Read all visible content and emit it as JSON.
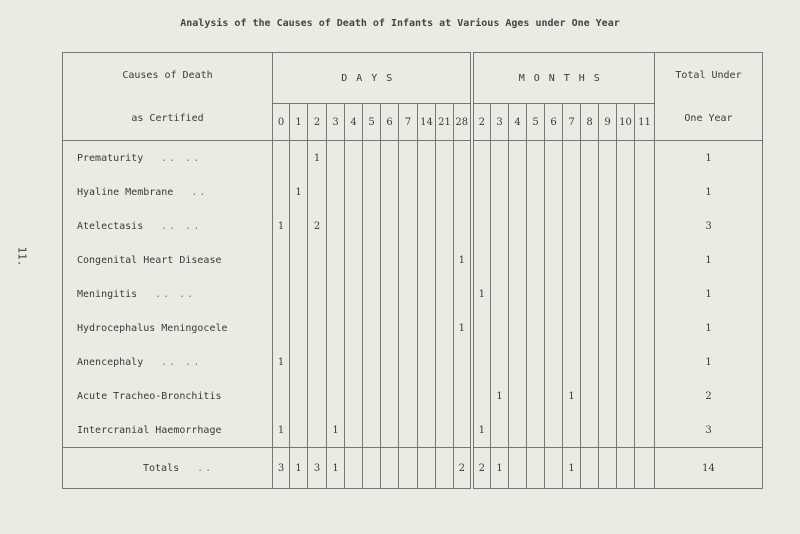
{
  "title": "Analysis of the Causes of Death of Infants at Various Ages under One Year",
  "page_number": "11.",
  "headers": {
    "cause_line1": "Causes of Death",
    "cause_line2": "as Certified",
    "days": "DAYS",
    "months": "MONTHS",
    "total_line1": "Total Under",
    "total_line2": "One Year"
  },
  "day_columns": [
    "0",
    "1",
    "2",
    "3",
    "4",
    "5",
    "6",
    "7",
    "14",
    "21",
    "28"
  ],
  "month_columns": [
    "2",
    "3",
    "4",
    "5",
    "6",
    "7",
    "8",
    "9",
    "10",
    "11"
  ],
  "rows": [
    {
      "cause": "Prematurity",
      "dots": ".. ..",
      "days": [
        "",
        "",
        "1",
        "",
        "",
        "",
        "",
        "",
        "",
        "",
        ""
      ],
      "months": [
        "",
        "",
        "",
        "",
        "",
        "",
        "",
        "",
        "",
        ""
      ],
      "total": "1"
    },
    {
      "cause": "Hyaline Membrane",
      "dots": "..",
      "days": [
        "",
        "1",
        "",
        "",
        "",
        "",
        "",
        "",
        "",
        "",
        ""
      ],
      "months": [
        "",
        "",
        "",
        "",
        "",
        "",
        "",
        "",
        "",
        ""
      ],
      "total": "1"
    },
    {
      "cause": "Atelectasis",
      "dots": ".. ..",
      "days": [
        "1",
        "",
        "2",
        "",
        "",
        "",
        "",
        "",
        "",
        "",
        ""
      ],
      "months": [
        "",
        "",
        "",
        "",
        "",
        "",
        "",
        "",
        "",
        ""
      ],
      "total": "3"
    },
    {
      "cause": "Congenital Heart Disease",
      "dots": "",
      "days": [
        "",
        "",
        "",
        "",
        "",
        "",
        "",
        "",
        "",
        "",
        "1"
      ],
      "months": [
        "",
        "",
        "",
        "",
        "",
        "",
        "",
        "",
        "",
        ""
      ],
      "total": "1"
    },
    {
      "cause": "Meningitis",
      "dots": ".. ..",
      "days": [
        "",
        "",
        "",
        "",
        "",
        "",
        "",
        "",
        "",
        "",
        ""
      ],
      "months": [
        "1",
        "",
        "",
        "",
        "",
        "",
        "",
        "",
        "",
        ""
      ],
      "total": "1"
    },
    {
      "cause": "Hydrocephalus Meningocele",
      "dots": "",
      "days": [
        "",
        "",
        "",
        "",
        "",
        "",
        "",
        "",
        "",
        "",
        "1"
      ],
      "months": [
        "",
        "",
        "",
        "",
        "",
        "",
        "",
        "",
        "",
        ""
      ],
      "total": "1"
    },
    {
      "cause": "Anencephaly",
      "dots": ".. ..",
      "days": [
        "1",
        "",
        "",
        "",
        "",
        "",
        "",
        "",
        "",
        "",
        ""
      ],
      "months": [
        "",
        "",
        "",
        "",
        "",
        "",
        "",
        "",
        "",
        ""
      ],
      "total": "1"
    },
    {
      "cause": "Acute Tracheo-Bronchitis",
      "dots": "",
      "days": [
        "",
        "",
        "",
        "",
        "",
        "",
        "",
        "",
        "",
        "",
        ""
      ],
      "months": [
        "",
        "1",
        "",
        "",
        "",
        "1",
        "",
        "",
        "",
        ""
      ],
      "total": "2"
    },
    {
      "cause": "Intercranial Haemorrhage",
      "dots": "",
      "days": [
        "1",
        "",
        "",
        "1",
        "",
        "",
        "",
        "",
        "",
        "",
        ""
      ],
      "months": [
        "1",
        "",
        "",
        "",
        "",
        "",
        "",
        "",
        "",
        ""
      ],
      "total": "3"
    }
  ],
  "totals": {
    "label": "Totals",
    "dots": "..",
    "days": [
      "3",
      "1",
      "3",
      "1",
      "",
      "",
      "",
      "",
      "",
      "",
      "2"
    ],
    "months": [
      "2",
      "1",
      "",
      "",
      "",
      "1",
      "",
      "",
      "",
      ""
    ],
    "total": "14"
  }
}
